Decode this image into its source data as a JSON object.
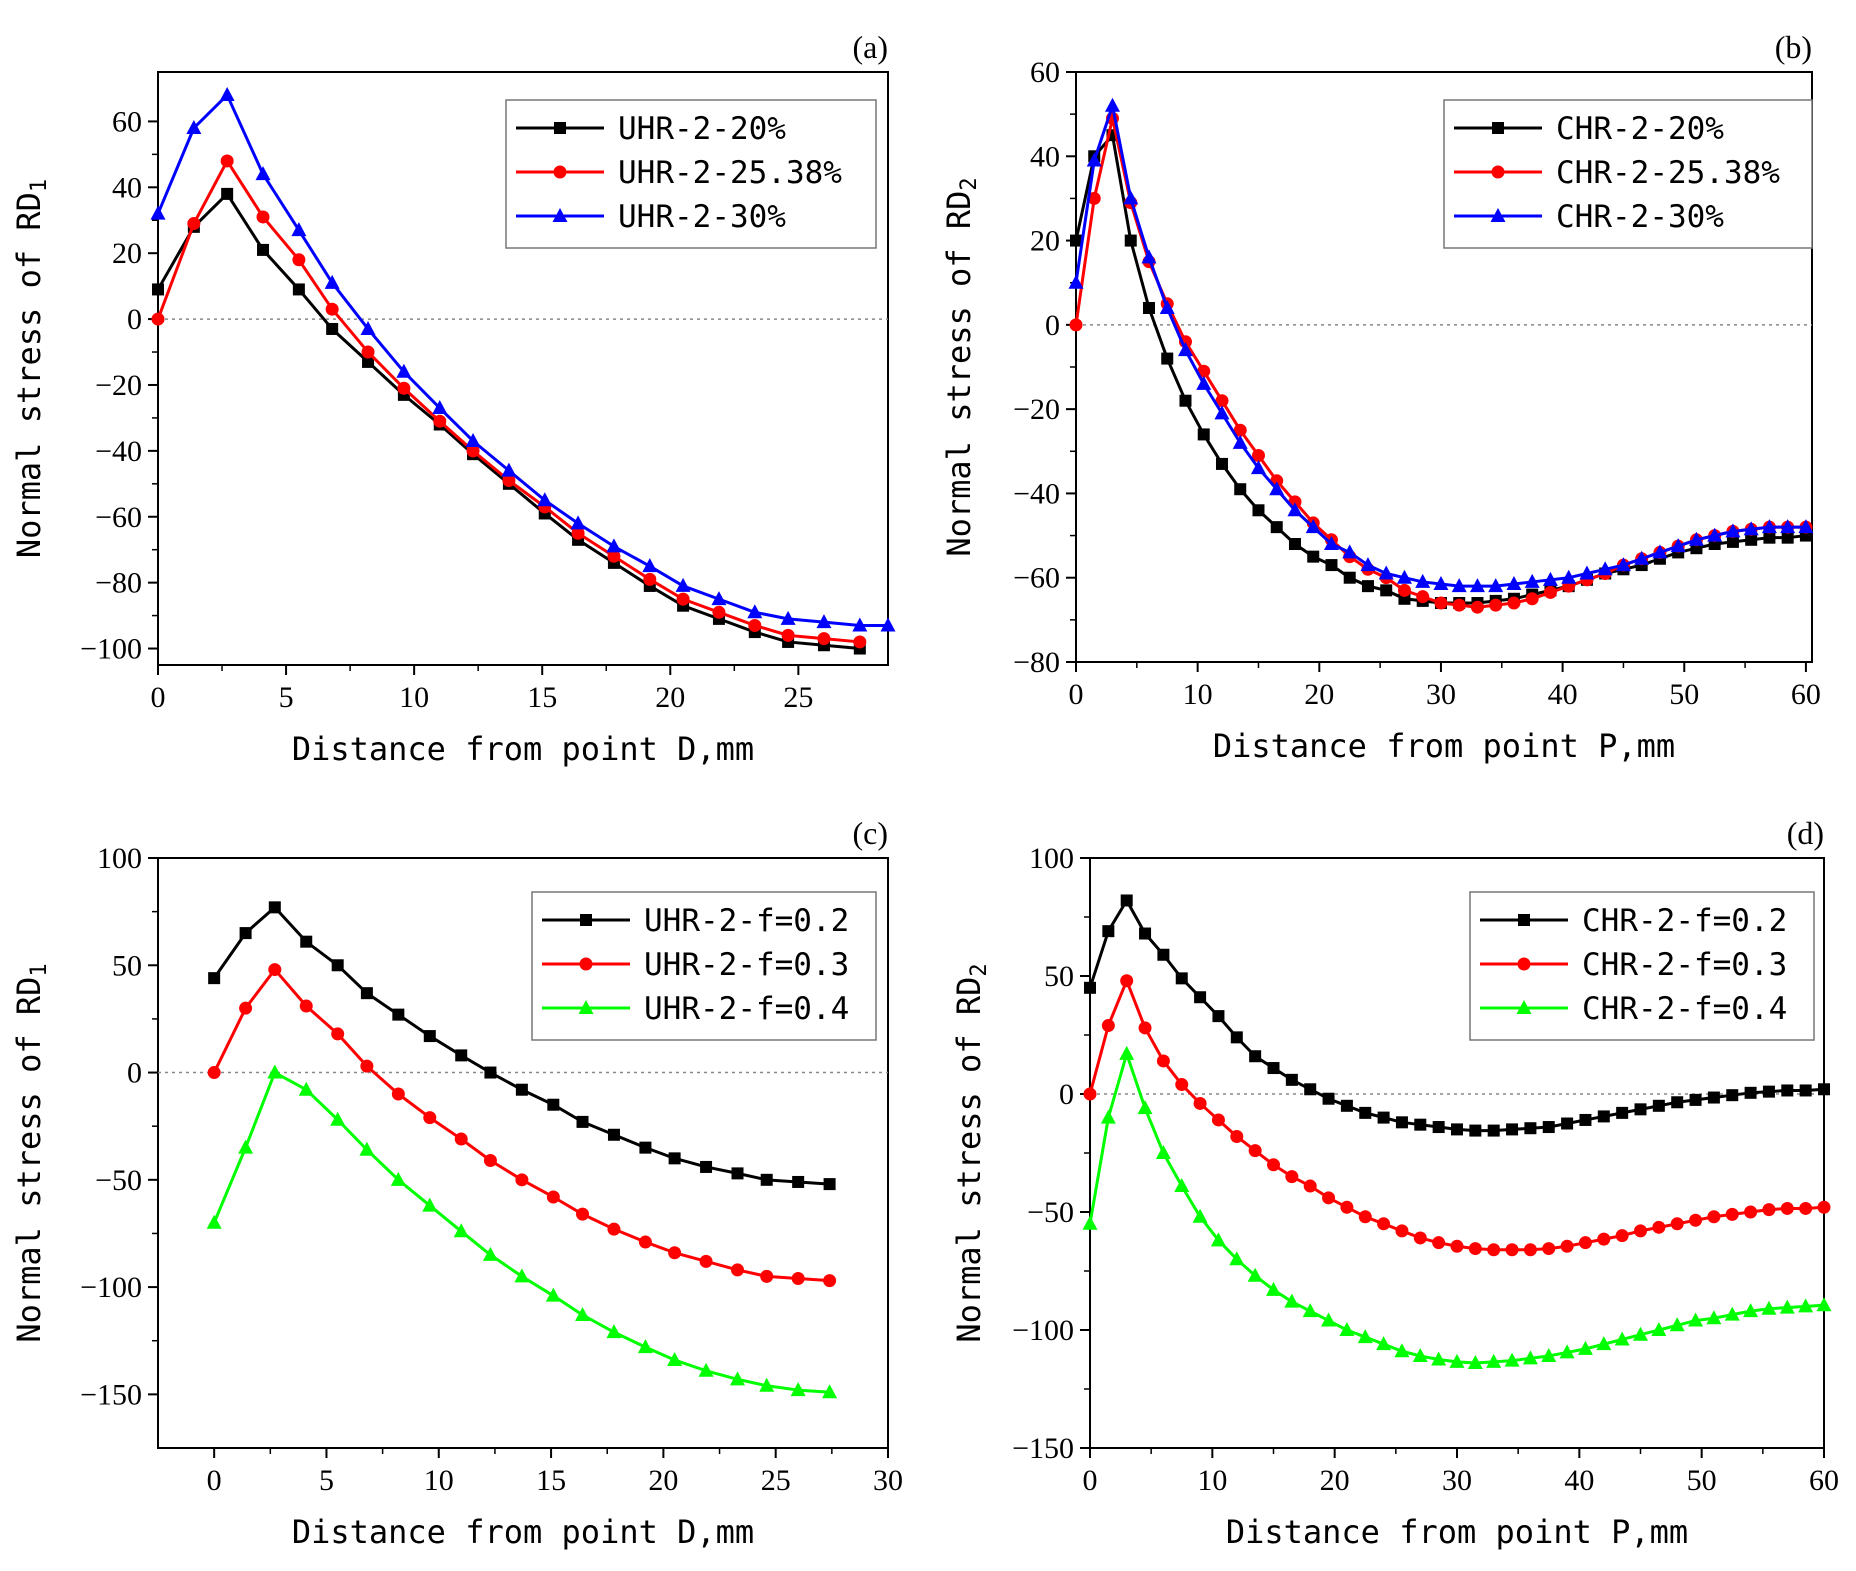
{
  "chart_data": [
    {
      "type": "line",
      "panel_label": "(a)",
      "xlabel": "Distance from point D,mm",
      "ylabel_main": "Normal stress of RD",
      "ylabel_sub": "1",
      "xlim": [
        0,
        28.5
      ],
      "ylim": [
        -105,
        75
      ],
      "x_ticks": [
        0,
        5,
        10,
        15,
        20,
        25
      ],
      "y_ticks": [
        -100,
        -80,
        -60,
        -40,
        -20,
        0,
        20,
        40,
        60
      ],
      "x_ticks_text": [
        "0",
        "5",
        "10",
        "15",
        "20",
        "25"
      ],
      "y_ticks_text": [
        "−100",
        "−80",
        "−60",
        "−40",
        "−20",
        "0",
        "20",
        "40",
        "60"
      ],
      "zero_line": true,
      "legend_position": "top-right",
      "series": [
        {
          "name": "UHR-2-20%",
          "color": "#000000",
          "marker": "square",
          "x": [
            0,
            1.4,
            2.7,
            4.1,
            5.5,
            6.8,
            8.2,
            9.6,
            11.0,
            12.3,
            13.7,
            15.1,
            16.4,
            17.8,
            19.2,
            20.5,
            21.9,
            23.3,
            24.6,
            26.0,
            27.4
          ],
          "values": [
            9,
            28,
            38,
            21,
            9,
            -3,
            -13,
            -23,
            -32,
            -41,
            -50,
            -59,
            -67,
            -74,
            -81,
            -87,
            -91,
            -95,
            -98,
            -99,
            -100
          ]
        },
        {
          "name": "UHR-2-25.38%",
          "color": "#ff0000",
          "marker": "circle",
          "x": [
            0,
            1.4,
            2.7,
            4.1,
            5.5,
            6.8,
            8.2,
            9.6,
            11.0,
            12.3,
            13.7,
            15.1,
            16.4,
            17.8,
            19.2,
            20.5,
            21.9,
            23.3,
            24.6,
            26.0,
            27.4
          ],
          "values": [
            0,
            29,
            48,
            31,
            18,
            3,
            -10,
            -21,
            -31,
            -40,
            -49,
            -57,
            -65,
            -72,
            -79,
            -85,
            -89,
            -93,
            -96,
            -97,
            -98
          ]
        },
        {
          "name": "UHR-2-30%",
          "color": "#0000ff",
          "marker": "triangle",
          "x": [
            0,
            1.4,
            2.7,
            4.1,
            5.5,
            6.8,
            8.2,
            9.6,
            11.0,
            12.3,
            13.7,
            15.1,
            16.4,
            17.8,
            19.2,
            20.5,
            21.9,
            23.3,
            24.6,
            26.0,
            27.4,
            28.5
          ],
          "values": [
            32,
            58,
            68,
            44,
            27,
            11,
            -3,
            -16,
            -27,
            -37,
            -46,
            -55,
            -62,
            -69,
            -75,
            -81,
            -85,
            -89,
            -91,
            -92,
            -93,
            -93
          ]
        }
      ]
    },
    {
      "type": "line",
      "panel_label": "(b)",
      "xlabel": "Distance from point P,mm",
      "ylabel_main": "Normal stress of RD",
      "ylabel_sub": "2",
      "xlim": [
        0,
        60.5
      ],
      "ylim": [
        -80,
        60
      ],
      "x_ticks": [
        0,
        10,
        20,
        30,
        40,
        50,
        60
      ],
      "y_ticks": [
        -80,
        -60,
        -40,
        -20,
        0,
        20,
        40,
        60
      ],
      "x_ticks_text": [
        "0",
        "10",
        "20",
        "30",
        "40",
        "50",
        "60"
      ],
      "y_ticks_text": [
        "−80",
        "−60",
        "−40",
        "−20",
        "0",
        "20",
        "40",
        "60"
      ],
      "zero_line": true,
      "legend_position": "top-right",
      "series": [
        {
          "name": "CHR-2-20%",
          "color": "#000000",
          "marker": "square",
          "x": [
            0,
            1.5,
            3,
            4.5,
            6,
            7.5,
            9,
            10.5,
            12,
            13.5,
            15,
            16.5,
            18,
            19.5,
            21,
            22.5,
            24,
            25.5,
            27,
            28.5,
            30,
            31.5,
            33,
            34.5,
            36,
            37.5,
            39,
            40.5,
            42,
            43.5,
            45,
            46.5,
            48,
            49.5,
            51,
            52.5,
            54,
            55.5,
            57,
            58.5,
            60
          ],
          "values": [
            20,
            40,
            45,
            20,
            4,
            -8,
            -18,
            -26,
            -33,
            -39,
            -44,
            -48,
            -52,
            -55,
            -57,
            -60,
            -62,
            -63,
            -65,
            -65.5,
            -66,
            -66,
            -66,
            -65.5,
            -65,
            -64,
            -63,
            -62,
            -60.5,
            -59,
            -58,
            -57,
            -55.5,
            -54,
            -53,
            -52,
            -51.5,
            -51,
            -50.5,
            -50.5,
            -50
          ]
        },
        {
          "name": "CHR-2-25.38%",
          "color": "#ff0000",
          "marker": "circle",
          "x": [
            0,
            1.5,
            3,
            4.5,
            6,
            7.5,
            9,
            10.5,
            12,
            13.5,
            15,
            16.5,
            18,
            19.5,
            21,
            22.5,
            24,
            25.5,
            27,
            28.5,
            30,
            31.5,
            33,
            34.5,
            36,
            37.5,
            39,
            40.5,
            42,
            43.5,
            45,
            46.5,
            48,
            49.5,
            51,
            52.5,
            54,
            55.5,
            57,
            58.5,
            60
          ],
          "values": [
            0,
            30,
            49,
            29,
            15,
            5,
            -4,
            -11,
            -18,
            -25,
            -31,
            -37,
            -42,
            -47,
            -51,
            -55,
            -58,
            -60,
            -63,
            -64.5,
            -66,
            -66.5,
            -67,
            -66.5,
            -66,
            -65,
            -63.5,
            -62,
            -60.5,
            -59,
            -57,
            -55.5,
            -54,
            -52.5,
            -51,
            -50,
            -49,
            -48.5,
            -48,
            -48,
            -48
          ]
        },
        {
          "name": "CHR-2-30%",
          "color": "#0000ff",
          "marker": "triangle",
          "x": [
            0,
            1.5,
            3,
            4.5,
            6,
            7.5,
            9,
            10.5,
            12,
            13.5,
            15,
            16.5,
            18,
            19.5,
            21,
            22.5,
            24,
            25.5,
            27,
            28.5,
            30,
            31.5,
            33,
            34.5,
            36,
            37.5,
            39,
            40.5,
            42,
            43.5,
            45,
            46.5,
            48,
            49.5,
            51,
            52.5,
            54,
            55.5,
            57,
            58.5,
            60
          ],
          "values": [
            10,
            39,
            52,
            30,
            16,
            4,
            -6,
            -14,
            -21,
            -28,
            -34,
            -39,
            -44,
            -48,
            -52,
            -54,
            -57,
            -59,
            -60,
            -61,
            -61.5,
            -62,
            -62,
            -62,
            -61.5,
            -61,
            -60.5,
            -60,
            -59,
            -58,
            -57,
            -55.5,
            -54,
            -52.5,
            -51,
            -50,
            -49,
            -48.5,
            -48,
            -48,
            -48
          ]
        }
      ]
    },
    {
      "type": "line",
      "panel_label": "(c)",
      "xlabel": "Distance from point D,mm",
      "ylabel_main": "Normal stress of RD",
      "ylabel_sub": "1",
      "xlim": [
        -2.5,
        30
      ],
      "ylim": [
        -175,
        100
      ],
      "x_ticks": [
        0,
        5,
        10,
        15,
        20,
        25,
        30
      ],
      "y_ticks": [
        -150,
        -100,
        -50,
        0,
        50,
        100
      ],
      "x_ticks_text": [
        "0",
        "5",
        "10",
        "15",
        "20",
        "25",
        "30"
      ],
      "y_ticks_text": [
        "−150",
        "−100",
        "−50",
        "0",
        "50",
        "100"
      ],
      "zero_line": true,
      "legend_position": "top-right",
      "series": [
        {
          "name": "UHR-2-f=0.2",
          "color": "#000000",
          "marker": "square",
          "x": [
            0,
            1.4,
            2.7,
            4.1,
            5.5,
            6.8,
            8.2,
            9.6,
            11.0,
            12.3,
            13.7,
            15.1,
            16.4,
            17.8,
            19.2,
            20.5,
            21.9,
            23.3,
            24.6,
            26.0,
            27.4
          ],
          "values": [
            44,
            65,
            77,
            61,
            50,
            37,
            27,
            17,
            8,
            0,
            -8,
            -15,
            -23,
            -29,
            -35,
            -40,
            -44,
            -47,
            -50,
            -51,
            -52
          ]
        },
        {
          "name": "UHR-2-f=0.3",
          "color": "#ff0000",
          "marker": "circle",
          "x": [
            0,
            1.4,
            2.7,
            4.1,
            5.5,
            6.8,
            8.2,
            9.6,
            11.0,
            12.3,
            13.7,
            15.1,
            16.4,
            17.8,
            19.2,
            20.5,
            21.9,
            23.3,
            24.6,
            26.0,
            27.4
          ],
          "values": [
            0,
            30,
            48,
            31,
            18,
            3,
            -10,
            -21,
            -31,
            -41,
            -50,
            -58,
            -66,
            -73,
            -79,
            -84,
            -88,
            -92,
            -95,
            -96,
            -97
          ]
        },
        {
          "name": "UHR-2-f=0.4",
          "color": "#00ff00",
          "marker": "triangle",
          "x": [
            0,
            1.4,
            2.7,
            4.1,
            5.5,
            6.8,
            8.2,
            9.6,
            11.0,
            12.3,
            13.7,
            15.1,
            16.4,
            17.8,
            19.2,
            20.5,
            21.9,
            23.3,
            24.6,
            26.0,
            27.4
          ],
          "values": [
            -70,
            -35,
            0,
            -8,
            -22,
            -36,
            -50,
            -62,
            -74,
            -85,
            -95,
            -104,
            -113,
            -121,
            -128,
            -134,
            -139,
            -143,
            -146,
            -148,
            -149
          ]
        }
      ]
    },
    {
      "type": "line",
      "panel_label": "(d)",
      "xlabel": "Distance from point P,mm",
      "ylabel_main": "Normal stress of RD",
      "ylabel_sub": "2",
      "xlim": [
        0,
        60
      ],
      "ylim": [
        -150,
        100
      ],
      "x_ticks": [
        0,
        10,
        20,
        30,
        40,
        50,
        60
      ],
      "y_ticks": [
        -150,
        -100,
        -50,
        0,
        50,
        100
      ],
      "x_ticks_text": [
        "0",
        "10",
        "20",
        "30",
        "40",
        "50",
        "60"
      ],
      "y_ticks_text": [
        "−150",
        "−100",
        "−50",
        "0",
        "50",
        "100"
      ],
      "zero_line": true,
      "legend_position": "top-right",
      "series": [
        {
          "name": "CHR-2-f=0.2",
          "color": "#000000",
          "marker": "square",
          "x": [
            0,
            1.5,
            3,
            4.5,
            6,
            7.5,
            9,
            10.5,
            12,
            13.5,
            15,
            16.5,
            18,
            19.5,
            21,
            22.5,
            24,
            25.5,
            27,
            28.5,
            30,
            31.5,
            33,
            34.5,
            36,
            37.5,
            39,
            40.5,
            42,
            43.5,
            45,
            46.5,
            48,
            49.5,
            51,
            52.5,
            54,
            55.5,
            57,
            58.5,
            60
          ],
          "values": [
            45,
            69,
            82,
            68,
            59,
            49,
            41,
            33,
            24,
            16,
            11,
            6,
            2,
            -2,
            -5,
            -8,
            -10,
            -12,
            -13,
            -14,
            -15,
            -15.5,
            -15.5,
            -15,
            -14.5,
            -14,
            -12.5,
            -11,
            -9.5,
            -8,
            -6.5,
            -5,
            -3.5,
            -2.5,
            -1.5,
            -0.5,
            0.5,
            1,
            1.5,
            1.5,
            2
          ]
        },
        {
          "name": "CHR-2-f=0.3",
          "color": "#ff0000",
          "marker": "circle",
          "x": [
            0,
            1.5,
            3,
            4.5,
            6,
            7.5,
            9,
            10.5,
            12,
            13.5,
            15,
            16.5,
            18,
            19.5,
            21,
            22.5,
            24,
            25.5,
            27,
            28.5,
            30,
            31.5,
            33,
            34.5,
            36,
            37.5,
            39,
            40.5,
            42,
            43.5,
            45,
            46.5,
            48,
            49.5,
            51,
            52.5,
            54,
            55.5,
            57,
            58.5,
            60
          ],
          "values": [
            0,
            29,
            48,
            28,
            14,
            4,
            -4,
            -11,
            -18,
            -24,
            -30,
            -35,
            -39,
            -44,
            -48,
            -52,
            -55,
            -58,
            -61,
            -63,
            -64.5,
            -65.5,
            -66,
            -66,
            -66,
            -65.5,
            -64.5,
            -63,
            -61.5,
            -60,
            -58,
            -56.5,
            -55,
            -53.5,
            -52,
            -51,
            -50,
            -49,
            -48.5,
            -48.5,
            -48
          ]
        },
        {
          "name": "CHR-2-f=0.4",
          "color": "#00ff00",
          "marker": "triangle",
          "x": [
            0,
            1.5,
            3,
            4.5,
            6,
            7.5,
            9,
            10.5,
            12,
            13.5,
            15,
            16.5,
            18,
            19.5,
            21,
            22.5,
            24,
            25.5,
            27,
            28.5,
            30,
            31.5,
            33,
            34.5,
            36,
            37.5,
            39,
            40.5,
            42,
            43.5,
            45,
            46.5,
            48,
            49.5,
            51,
            52.5,
            54,
            55.5,
            57,
            58.5,
            60
          ],
          "values": [
            -55,
            -10,
            17,
            -6,
            -25,
            -39,
            -52,
            -62,
            -70,
            -77,
            -83,
            -88,
            -92,
            -96,
            -100,
            -103,
            -106,
            -109,
            -111,
            -112.5,
            -113.5,
            -114,
            -113.5,
            -113,
            -112,
            -111,
            -109.5,
            -108,
            -106,
            -104,
            -102,
            -100,
            -98,
            -96,
            -95,
            -93.5,
            -92,
            -91,
            -90.5,
            -90,
            -89.5
          ]
        }
      ]
    }
  ]
}
